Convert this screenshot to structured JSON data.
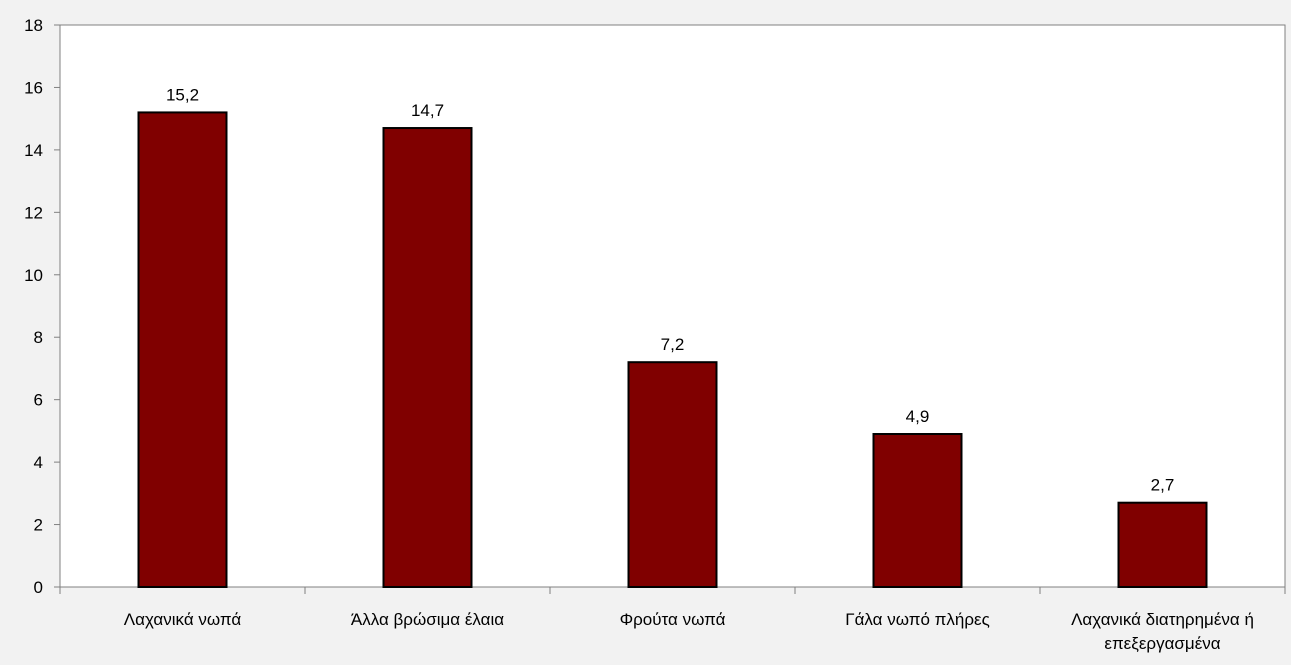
{
  "chart_data": {
    "type": "bar",
    "categories": [
      [
        "Λαχανικά νωπά"
      ],
      [
        "Άλλα βρώσιμα έλαια"
      ],
      [
        "Φρούτα νωπά"
      ],
      [
        "Γάλα νωπό πλήρες"
      ],
      [
        "Λαχανικά διατηρημένα ή",
        "επεξεργασμένα"
      ]
    ],
    "values": [
      15.2,
      14.7,
      7.2,
      4.9,
      2.7
    ],
    "data_labels": [
      "15,2",
      "14,7",
      "7,2",
      "4,9",
      "2,7"
    ],
    "yticks": [
      "0",
      "2",
      "4",
      "6",
      "8",
      "10",
      "12",
      "14",
      "16",
      "18"
    ],
    "ylim": [
      0,
      18
    ],
    "title": "",
    "xlabel": "",
    "ylabel": "",
    "grid": false,
    "legend": "none",
    "colors": {
      "bar_fill": "#800000",
      "bar_stroke": "#000000",
      "plot_background": "#ffffff",
      "page_background": "#f2f2f2",
      "axis": "#808080"
    }
  }
}
